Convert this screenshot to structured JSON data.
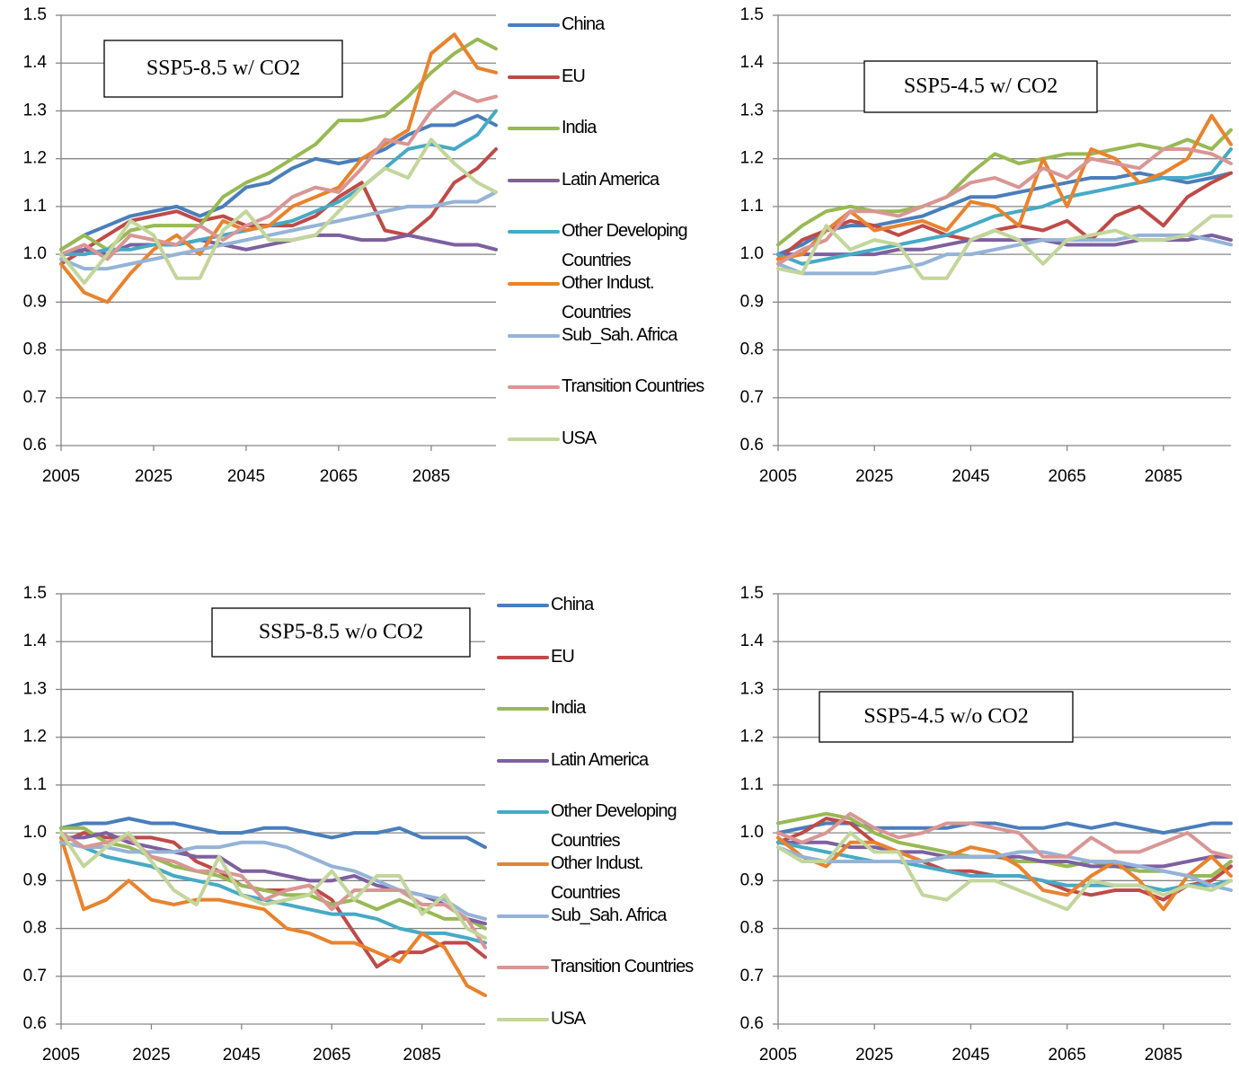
{
  "chart_data": [
    {
      "type": "line",
      "title": "SSP5-8.5 w/ CO2",
      "legend": true,
      "grid": true,
      "x": [
        2005,
        2010,
        2015,
        2020,
        2025,
        2030,
        2035,
        2040,
        2045,
        2050,
        2055,
        2060,
        2065,
        2070,
        2075,
        2080,
        2085,
        2090,
        2095,
        2099
      ],
      "xlim": [
        2005,
        2099
      ],
      "xticks": [
        2005,
        2025,
        2045,
        2065,
        2085
      ],
      "ylim": [
        0.6,
        1.5
      ],
      "yticks": [
        0.6,
        0.7,
        0.8,
        0.9,
        {
          "value": 1,
          "label": "1.0"
        },
        1.1,
        1.2,
        1.3,
        1.4,
        1.5
      ],
      "series": [
        {
          "name": "China",
          "color": "#4a7ebb",
          "values": [
            1.01,
            1.04,
            1.06,
            1.08,
            1.09,
            1.1,
            1.08,
            1.1,
            1.14,
            1.15,
            1.18,
            1.2,
            1.19,
            1.2,
            1.22,
            1.25,
            1.27,
            1.27,
            1.29,
            1.27
          ]
        },
        {
          "name": "EU",
          "color": "#be4b48",
          "values": [
            0.98,
            1.01,
            1.04,
            1.07,
            1.08,
            1.09,
            1.07,
            1.08,
            1.06,
            1.06,
            1.06,
            1.08,
            1.12,
            1.15,
            1.05,
            1.04,
            1.08,
            1.15,
            1.18,
            1.22
          ]
        },
        {
          "name": "India",
          "color": "#98b954",
          "values": [
            1.01,
            1.04,
            1.01,
            1.05,
            1.06,
            1.06,
            1.06,
            1.12,
            1.15,
            1.17,
            1.2,
            1.23,
            1.28,
            1.28,
            1.29,
            1.33,
            1.38,
            1.42,
            1.45,
            1.43
          ]
        },
        {
          "name": "Latin America",
          "color": "#7d60a0",
          "values": [
            1.0,
            1.01,
            1.0,
            1.02,
            1.02,
            1.02,
            1.03,
            1.02,
            1.01,
            1.02,
            1.03,
            1.04,
            1.04,
            1.03,
            1.03,
            1.04,
            1.03,
            1.02,
            1.02,
            1.01
          ]
        },
        {
          "name": "Other Developing Countries",
          "color": "#46aac5",
          "values": [
            1.0,
            1.0,
            1.01,
            1.01,
            1.02,
            1.02,
            1.03,
            1.04,
            1.05,
            1.06,
            1.07,
            1.09,
            1.11,
            1.14,
            1.18,
            1.22,
            1.23,
            1.22,
            1.25,
            1.3
          ]
        },
        {
          "name": "Other Indust. Countries",
          "color": "#e8832e",
          "values": [
            0.98,
            0.92,
            0.9,
            0.96,
            1.01,
            1.04,
            1.0,
            1.07,
            1.05,
            1.06,
            1.1,
            1.12,
            1.14,
            1.2,
            1.23,
            1.26,
            1.42,
            1.46,
            1.39,
            1.38
          ]
        },
        {
          "name": "Sub_Sah. Africa",
          "color": "#95b3d7",
          "values": [
            0.99,
            0.97,
            0.97,
            0.98,
            0.99,
            1.0,
            1.01,
            1.02,
            1.03,
            1.04,
            1.05,
            1.06,
            1.07,
            1.08,
            1.09,
            1.1,
            1.1,
            1.11,
            1.11,
            1.13
          ]
        },
        {
          "name": "Transition Countries",
          "color": "#d99694",
          "values": [
            1.0,
            1.02,
            0.99,
            1.04,
            1.03,
            1.02,
            1.06,
            1.03,
            1.06,
            1.08,
            1.12,
            1.14,
            1.13,
            1.18,
            1.24,
            1.23,
            1.3,
            1.34,
            1.32,
            1.33
          ]
        },
        {
          "name": "USA",
          "color": "#c3d69b",
          "values": [
            1.0,
            0.94,
            1.0,
            1.07,
            1.04,
            0.95,
            0.95,
            1.05,
            1.09,
            1.03,
            1.03,
            1.04,
            1.09,
            1.14,
            1.18,
            1.16,
            1.24,
            1.19,
            1.15,
            1.13
          ]
        }
      ]
    },
    {
      "type": "line",
      "title": "SSP5-4.5 w/ CO2",
      "legend": false,
      "grid": true,
      "x": [
        2005,
        2010,
        2015,
        2020,
        2025,
        2030,
        2035,
        2040,
        2045,
        2050,
        2055,
        2060,
        2065,
        2070,
        2075,
        2080,
        2085,
        2090,
        2095,
        2099
      ],
      "xlim": [
        2005,
        2099
      ],
      "xticks": [
        2005,
        2025,
        2045,
        2065,
        2085
      ],
      "ylim": [
        0.6,
        1.5
      ],
      "yticks": [
        0.6,
        0.7,
        0.8,
        0.9,
        {
          "value": 1,
          "label": "1.0"
        },
        1.1,
        1.2,
        1.3,
        1.4,
        1.5
      ],
      "series": [
        {
          "color": "#4a7ebb",
          "values": [
            1.0,
            1.02,
            1.05,
            1.06,
            1.06,
            1.07,
            1.08,
            1.1,
            1.12,
            1.12,
            1.13,
            1.14,
            1.15,
            1.16,
            1.16,
            1.17,
            1.16,
            1.15,
            1.16,
            1.17
          ]
        },
        {
          "color": "#be4b48",
          "values": [
            0.99,
            1.03,
            1.05,
            1.07,
            1.06,
            1.04,
            1.06,
            1.04,
            1.03,
            1.05,
            1.06,
            1.05,
            1.07,
            1.03,
            1.08,
            1.1,
            1.06,
            1.12,
            1.15,
            1.17
          ]
        },
        {
          "color": "#98b954",
          "values": [
            1.02,
            1.06,
            1.09,
            1.1,
            1.09,
            1.09,
            1.1,
            1.12,
            1.17,
            1.21,
            1.19,
            1.2,
            1.21,
            1.21,
            1.22,
            1.23,
            1.22,
            1.24,
            1.22,
            1.26
          ]
        },
        {
          "color": "#7d60a0",
          "values": [
            1.0,
            1.0,
            1.0,
            1.0,
            1.0,
            1.01,
            1.01,
            1.02,
            1.03,
            1.03,
            1.03,
            1.03,
            1.02,
            1.02,
            1.02,
            1.03,
            1.03,
            1.03,
            1.04,
            1.03
          ]
        },
        {
          "color": "#46aac5",
          "values": [
            1.0,
            0.98,
            0.99,
            1.0,
            1.01,
            1.02,
            1.03,
            1.04,
            1.06,
            1.08,
            1.09,
            1.1,
            1.12,
            1.13,
            1.14,
            1.15,
            1.16,
            1.16,
            1.17,
            1.22
          ]
        },
        {
          "color": "#e8832e",
          "values": [
            0.99,
            1.0,
            1.05,
            1.09,
            1.05,
            1.06,
            1.07,
            1.05,
            1.11,
            1.1,
            1.06,
            1.2,
            1.1,
            1.22,
            1.2,
            1.15,
            1.17,
            1.2,
            1.29,
            1.23
          ]
        },
        {
          "color": "#95b3d7",
          "values": [
            0.98,
            0.96,
            0.96,
            0.96,
            0.96,
            0.97,
            0.98,
            1.0,
            1.0,
            1.01,
            1.02,
            1.03,
            1.03,
            1.03,
            1.03,
            1.04,
            1.04,
            1.04,
            1.03,
            1.02
          ]
        },
        {
          "color": "#d99694",
          "values": [
            0.98,
            1.01,
            1.03,
            1.09,
            1.09,
            1.08,
            1.1,
            1.12,
            1.15,
            1.16,
            1.14,
            1.18,
            1.16,
            1.2,
            1.19,
            1.18,
            1.22,
            1.22,
            1.21,
            1.19
          ]
        },
        {
          "color": "#c3d69b",
          "values": [
            0.97,
            0.96,
            1.06,
            1.01,
            1.03,
            1.02,
            0.95,
            0.95,
            1.03,
            1.05,
            1.03,
            0.98,
            1.03,
            1.04,
            1.05,
            1.03,
            1.03,
            1.04,
            1.08,
            1.08
          ]
        }
      ]
    },
    {
      "type": "line",
      "title": "SSP5-8.5 w/o CO2",
      "legend": true,
      "grid": true,
      "x": [
        2005,
        2010,
        2015,
        2020,
        2025,
        2030,
        2035,
        2040,
        2045,
        2050,
        2055,
        2060,
        2065,
        2070,
        2075,
        2080,
        2085,
        2090,
        2095,
        2099
      ],
      "xlim": [
        2005,
        2099
      ],
      "xticks": [
        2005,
        2025,
        2045,
        2065,
        2085
      ],
      "ylim": [
        0.6,
        1.5
      ],
      "yticks": [
        0.6,
        0.7,
        0.8,
        0.9,
        {
          "value": 1,
          "label": "1.0"
        },
        1.1,
        1.2,
        1.3,
        1.4,
        1.5
      ],
      "series": [
        {
          "name": "China",
          "color": "#4a7ebb",
          "values": [
            1.01,
            1.02,
            1.02,
            1.03,
            1.02,
            1.02,
            1.01,
            1.0,
            1.0,
            1.01,
            1.01,
            1.0,
            0.99,
            1.0,
            1.0,
            1.01,
            0.99,
            0.99,
            0.99,
            0.97
          ]
        },
        {
          "name": "EU",
          "color": "#be4b48",
          "values": [
            0.98,
            1.0,
            0.99,
            0.99,
            0.99,
            0.98,
            0.94,
            0.92,
            0.89,
            0.88,
            0.88,
            0.89,
            0.86,
            0.79,
            0.72,
            0.75,
            0.75,
            0.77,
            0.77,
            0.74
          ]
        },
        {
          "name": "India",
          "color": "#98b954",
          "values": [
            1.01,
            1.01,
            0.98,
            0.97,
            0.95,
            0.93,
            0.92,
            0.91,
            0.89,
            0.88,
            0.87,
            0.87,
            0.85,
            0.86,
            0.84,
            0.86,
            0.84,
            0.82,
            0.82,
            0.8
          ]
        },
        {
          "name": "Latin America",
          "color": "#7d60a0",
          "values": [
            0.99,
            0.99,
            1.0,
            0.98,
            0.97,
            0.96,
            0.95,
            0.95,
            0.92,
            0.92,
            0.91,
            0.9,
            0.9,
            0.91,
            0.89,
            0.88,
            0.87,
            0.85,
            0.82,
            0.81
          ]
        },
        {
          "name": "Other Developing Countries",
          "color": "#46aac5",
          "values": [
            1.0,
            0.97,
            0.95,
            0.94,
            0.93,
            0.91,
            0.9,
            0.89,
            0.87,
            0.86,
            0.85,
            0.84,
            0.83,
            0.83,
            0.82,
            0.8,
            0.79,
            0.79,
            0.78,
            0.77
          ]
        },
        {
          "name": "Other Indust. Countries",
          "color": "#e8832e",
          "values": [
            0.99,
            0.84,
            0.86,
            0.9,
            0.86,
            0.85,
            0.86,
            0.86,
            0.85,
            0.84,
            0.8,
            0.79,
            0.77,
            0.77,
            0.75,
            0.73,
            0.79,
            0.76,
            0.68,
            0.66
          ]
        },
        {
          "name": "Sub_Sah. Africa",
          "color": "#95b3d7",
          "values": [
            0.98,
            0.97,
            0.97,
            0.96,
            0.96,
            0.96,
            0.97,
            0.97,
            0.98,
            0.98,
            0.97,
            0.95,
            0.93,
            0.92,
            0.9,
            0.88,
            0.87,
            0.86,
            0.83,
            0.82
          ]
        },
        {
          "name": "Transition Countries",
          "color": "#d99694",
          "values": [
            1.0,
            0.97,
            0.98,
            0.99,
            0.95,
            0.94,
            0.92,
            0.92,
            0.91,
            0.86,
            0.88,
            0.89,
            0.84,
            0.88,
            0.88,
            0.88,
            0.85,
            0.85,
            0.82,
            0.76
          ]
        },
        {
          "name": "USA",
          "color": "#c3d69b",
          "values": [
            1.0,
            0.93,
            0.97,
            1.0,
            0.94,
            0.88,
            0.85,
            0.95,
            0.87,
            0.85,
            0.86,
            0.87,
            0.92,
            0.86,
            0.91,
            0.91,
            0.83,
            0.87,
            0.8,
            0.78
          ]
        }
      ]
    },
    {
      "type": "line",
      "title": "SSP5-4.5 w/o CO2",
      "legend": false,
      "grid": true,
      "x": [
        2005,
        2010,
        2015,
        2020,
        2025,
        2030,
        2035,
        2040,
        2045,
        2050,
        2055,
        2060,
        2065,
        2070,
        2075,
        2080,
        2085,
        2090,
        2095,
        2099
      ],
      "xlim": [
        2005,
        2099
      ],
      "xticks": [
        2005,
        2025,
        2045,
        2065,
        2085
      ],
      "ylim": [
        0.6,
        1.5
      ],
      "yticks": [
        0.6,
        0.7,
        0.8,
        0.9,
        {
          "value": 1,
          "label": "1.0"
        },
        1.1,
        1.2,
        1.3,
        1.4,
        1.5
      ],
      "series": [
        {
          "color": "#4a7ebb",
          "values": [
            1.0,
            1.01,
            1.02,
            1.02,
            1.01,
            1.01,
            1.01,
            1.01,
            1.02,
            1.02,
            1.01,
            1.01,
            1.02,
            1.01,
            1.02,
            1.01,
            1.0,
            1.01,
            1.02,
            1.02
          ]
        },
        {
          "color": "#be4b48",
          "values": [
            0.98,
            1.0,
            1.03,
            1.02,
            0.98,
            0.96,
            0.94,
            0.92,
            0.92,
            0.91,
            0.91,
            0.9,
            0.88,
            0.87,
            0.88,
            0.88,
            0.86,
            0.89,
            0.9,
            0.93
          ]
        },
        {
          "color": "#98b954",
          "values": [
            1.02,
            1.03,
            1.04,
            1.03,
            1.0,
            0.98,
            0.97,
            0.96,
            0.95,
            0.95,
            0.94,
            0.94,
            0.93,
            0.94,
            0.93,
            0.92,
            0.92,
            0.91,
            0.91,
            0.94
          ]
        },
        {
          "color": "#7d60a0",
          "values": [
            0.98,
            0.98,
            0.98,
            0.97,
            0.97,
            0.96,
            0.96,
            0.95,
            0.95,
            0.95,
            0.95,
            0.94,
            0.94,
            0.93,
            0.93,
            0.93,
            0.93,
            0.94,
            0.95,
            0.95
          ]
        },
        {
          "color": "#46aac5",
          "values": [
            0.98,
            0.97,
            0.96,
            0.95,
            0.94,
            0.94,
            0.93,
            0.92,
            0.91,
            0.91,
            0.91,
            0.9,
            0.89,
            0.89,
            0.89,
            0.89,
            0.88,
            0.89,
            0.89,
            0.9
          ]
        },
        {
          "color": "#e8832e",
          "values": [
            0.99,
            0.95,
            0.93,
            0.98,
            0.98,
            0.96,
            0.94,
            0.95,
            0.97,
            0.96,
            0.93,
            0.88,
            0.87,
            0.91,
            0.94,
            0.9,
            0.84,
            0.91,
            0.95,
            0.91
          ]
        },
        {
          "color": "#95b3d7",
          "values": [
            0.97,
            0.95,
            0.94,
            0.94,
            0.94,
            0.94,
            0.94,
            0.95,
            0.95,
            0.95,
            0.96,
            0.96,
            0.95,
            0.94,
            0.94,
            0.93,
            0.92,
            0.91,
            0.89,
            0.88
          ]
        },
        {
          "color": "#d99694",
          "values": [
            1.0,
            0.98,
            1.0,
            1.04,
            1.01,
            0.99,
            1.0,
            1.02,
            1.02,
            1.01,
            1.0,
            0.95,
            0.95,
            0.99,
            0.96,
            0.96,
            0.98,
            1.0,
            0.96,
            0.95
          ]
        },
        {
          "color": "#c3d69b",
          "values": [
            0.97,
            0.94,
            0.94,
            1.0,
            0.96,
            0.96,
            0.87,
            0.86,
            0.9,
            0.9,
            0.88,
            0.86,
            0.84,
            0.9,
            0.89,
            0.89,
            0.87,
            0.89,
            0.88,
            0.9
          ]
        }
      ]
    }
  ]
}
